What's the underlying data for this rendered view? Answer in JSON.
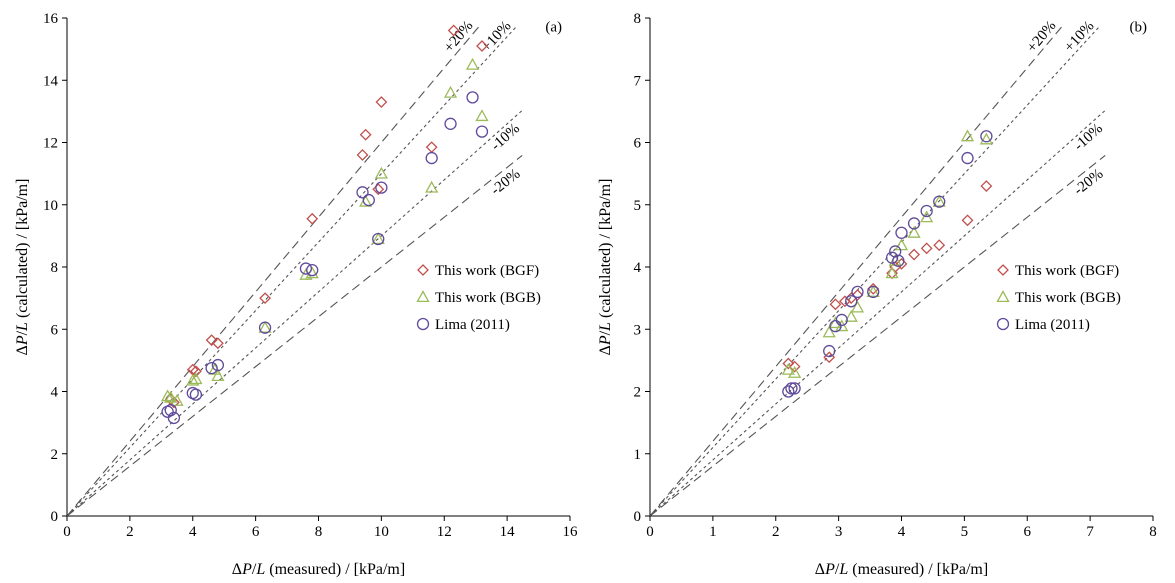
{
  "chart_data": [
    {
      "type": "scatter",
      "panel_label": "(a)",
      "xlabel_parts": [
        "Δ",
        "P",
        "/",
        "L",
        " (measured) / [kPa/m]"
      ],
      "ylabel_parts": [
        "Δ",
        "P",
        "/",
        "L",
        " (calculated) / [kPa/m]"
      ],
      "xlim": [
        0,
        16
      ],
      "ylim": [
        0,
        16
      ],
      "xticks": [
        "0",
        "2",
        "4",
        "6",
        "8",
        "10",
        "12",
        "14",
        "16"
      ],
      "yticks": [
        "0",
        "2",
        "4",
        "6",
        "8",
        "10",
        "12",
        "14",
        "16"
      ],
      "legend_position": "center-right",
      "reference_lines": [
        {
          "label": "+20%",
          "factor": 1.2
        },
        {
          "label": "+10%",
          "factor": 1.1
        },
        {
          "label": "-10%",
          "factor": 0.9
        },
        {
          "label": "-20%",
          "factor": 0.8
        }
      ],
      "series": [
        {
          "name": "This work (BGF)",
          "marker": "diamond",
          "color": "#c0504d",
          "points": [
            [
              3.3,
              3.75
            ],
            [
              3.4,
              3.65
            ],
            [
              4.0,
              4.7
            ],
            [
              4.1,
              4.65
            ],
            [
              4.6,
              5.65
            ],
            [
              4.8,
              5.55
            ],
            [
              6.3,
              7.0
            ],
            [
              7.8,
              9.55
            ],
            [
              9.4,
              11.6
            ],
            [
              9.5,
              12.25
            ],
            [
              9.9,
              10.5
            ],
            [
              10.0,
              13.3
            ],
            [
              11.6,
              11.85
            ],
            [
              12.3,
              15.6
            ],
            [
              13.2,
              15.1
            ]
          ]
        },
        {
          "name": "This work (BGB)",
          "marker": "triangle",
          "color": "#9bbb59",
          "points": [
            [
              3.2,
              3.85
            ],
            [
              3.3,
              3.8
            ],
            [
              3.5,
              3.7
            ],
            [
              4.0,
              4.35
            ],
            [
              4.1,
              4.4
            ],
            [
              4.7,
              4.7
            ],
            [
              4.8,
              4.5
            ],
            [
              6.3,
              6.05
            ],
            [
              7.6,
              7.75
            ],
            [
              7.8,
              7.8
            ],
            [
              9.5,
              10.1
            ],
            [
              9.9,
              8.9
            ],
            [
              10.0,
              11.0
            ],
            [
              11.6,
              10.55
            ],
            [
              12.2,
              13.6
            ],
            [
              12.9,
              14.5
            ],
            [
              13.2,
              12.85
            ]
          ]
        },
        {
          "name": "Lima (2011)",
          "marker": "circle",
          "color": "#604a9b",
          "points": [
            [
              3.2,
              3.35
            ],
            [
              3.3,
              3.4
            ],
            [
              3.4,
              3.15
            ],
            [
              4.0,
              3.95
            ],
            [
              4.1,
              3.9
            ],
            [
              4.6,
              4.75
            ],
            [
              4.8,
              4.85
            ],
            [
              6.3,
              6.05
            ],
            [
              7.6,
              7.95
            ],
            [
              7.8,
              7.9
            ],
            [
              9.4,
              10.4
            ],
            [
              9.6,
              10.15
            ],
            [
              9.9,
              8.9
            ],
            [
              10.0,
              10.55
            ],
            [
              11.6,
              11.5
            ],
            [
              12.2,
              12.6
            ],
            [
              12.9,
              13.45
            ],
            [
              13.2,
              12.35
            ]
          ]
        }
      ]
    },
    {
      "type": "scatter",
      "panel_label": "(b)",
      "xlabel_parts": [
        "Δ",
        "P",
        "/",
        "L",
        " (measured) / [kPa/m]"
      ],
      "ylabel_parts": [
        "Δ",
        "P",
        "/",
        "L",
        " (calculated) / [kPa/m]"
      ],
      "xlim": [
        0,
        8
      ],
      "ylim": [
        0,
        8
      ],
      "xticks": [
        "0",
        "1",
        "2",
        "3",
        "4",
        "5",
        "6",
        "7",
        "8"
      ],
      "yticks": [
        "0",
        "1",
        "2",
        "3",
        "4",
        "5",
        "6",
        "7",
        "8"
      ],
      "legend_position": "center-right",
      "reference_lines": [
        {
          "label": "+20%",
          "factor": 1.2
        },
        {
          "label": "+10%",
          "factor": 1.1
        },
        {
          "label": "-10%",
          "factor": 0.9
        },
        {
          "label": "-20%",
          "factor": 0.8
        }
      ],
      "series": [
        {
          "name": "This work (BGF)",
          "marker": "diamond",
          "color": "#c0504d",
          "points": [
            [
              2.2,
              2.45
            ],
            [
              2.3,
              2.4
            ],
            [
              2.85,
              2.55
            ],
            [
              2.95,
              3.4
            ],
            [
              3.1,
              3.45
            ],
            [
              3.2,
              3.5
            ],
            [
              3.3,
              3.55
            ],
            [
              3.55,
              3.65
            ],
            [
              3.85,
              3.9
            ],
            [
              3.9,
              4.0
            ],
            [
              4.0,
              4.05
            ],
            [
              4.2,
              4.2
            ],
            [
              4.4,
              4.3
            ],
            [
              4.6,
              4.35
            ],
            [
              5.05,
              4.75
            ],
            [
              5.35,
              5.3
            ]
          ]
        },
        {
          "name": "This work (BGB)",
          "marker": "triangle",
          "color": "#9bbb59",
          "points": [
            [
              2.2,
              2.35
            ],
            [
              2.3,
              2.3
            ],
            [
              2.85,
              2.95
            ],
            [
              2.95,
              3.1
            ],
            [
              3.05,
              3.05
            ],
            [
              3.2,
              3.2
            ],
            [
              3.3,
              3.35
            ],
            [
              3.55,
              3.6
            ],
            [
              3.85,
              3.9
            ],
            [
              3.9,
              4.1
            ],
            [
              4.0,
              4.35
            ],
            [
              4.2,
              4.55
            ],
            [
              4.4,
              4.8
            ],
            [
              4.6,
              5.05
            ],
            [
              5.05,
              6.1
            ],
            [
              5.35,
              6.05
            ]
          ]
        },
        {
          "name": "Lima (2011)",
          "marker": "circle",
          "color": "#604a9b",
          "points": [
            [
              2.2,
              2.0
            ],
            [
              2.25,
              2.05
            ],
            [
              2.3,
              2.05
            ],
            [
              2.85,
              2.65
            ],
            [
              2.95,
              3.05
            ],
            [
              3.05,
              3.15
            ],
            [
              3.2,
              3.45
            ],
            [
              3.3,
              3.6
            ],
            [
              3.55,
              3.6
            ],
            [
              3.85,
              4.15
            ],
            [
              3.9,
              4.25
            ],
            [
              3.95,
              4.1
            ],
            [
              4.0,
              4.55
            ],
            [
              4.2,
              4.7
            ],
            [
              4.4,
              4.9
            ],
            [
              4.6,
              5.05
            ],
            [
              5.05,
              5.75
            ],
            [
              5.35,
              6.1
            ]
          ]
        }
      ]
    }
  ]
}
